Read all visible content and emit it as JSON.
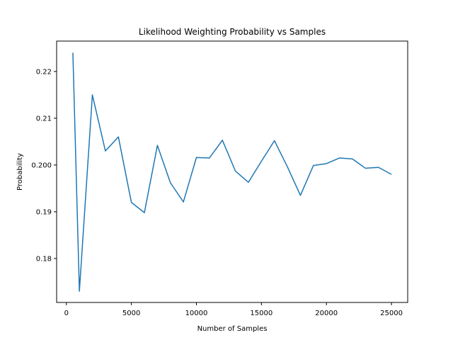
{
  "chart_data": {
    "type": "line",
    "title": "Likelihood Weighting Probability vs Samples",
    "xlabel": "Number of Samples",
    "ylabel": "Probability",
    "xlim": [
      -750,
      26250
    ],
    "ylim": [
      0.1706,
      0.2265
    ],
    "xticks": [
      0,
      5000,
      10000,
      15000,
      20000,
      25000
    ],
    "xtick_labels": [
      "0",
      "5000",
      "10000",
      "15000",
      "20000",
      "25000"
    ],
    "yticks": [
      0.18,
      0.19,
      0.2,
      0.21,
      0.22
    ],
    "ytick_labels": [
      "0.18",
      "0.19",
      "0.200",
      "0.21",
      "0.22"
    ],
    "grid": false,
    "series": [
      {
        "color": "#1f77b4",
        "x": [
          500,
          1000,
          2000,
          3000,
          4000,
          5000,
          6000,
          7000,
          8000,
          9000,
          10000,
          11000,
          12000,
          13000,
          14000,
          15000,
          16000,
          17000,
          18000,
          19000,
          20000,
          21000,
          22000,
          23000,
          24000,
          25000
        ],
        "y": [
          0.224,
          0.173,
          0.215,
          0.203,
          0.206,
          0.192,
          0.1898,
          0.2042,
          0.1962,
          0.1921,
          0.2016,
          0.2015,
          0.2053,
          0.1987,
          0.1963,
          0.2008,
          0.2052,
          0.1996,
          0.1935,
          0.1999,
          0.2003,
          0.2015,
          0.2013,
          0.1993,
          0.1995,
          0.198
        ]
      }
    ]
  }
}
